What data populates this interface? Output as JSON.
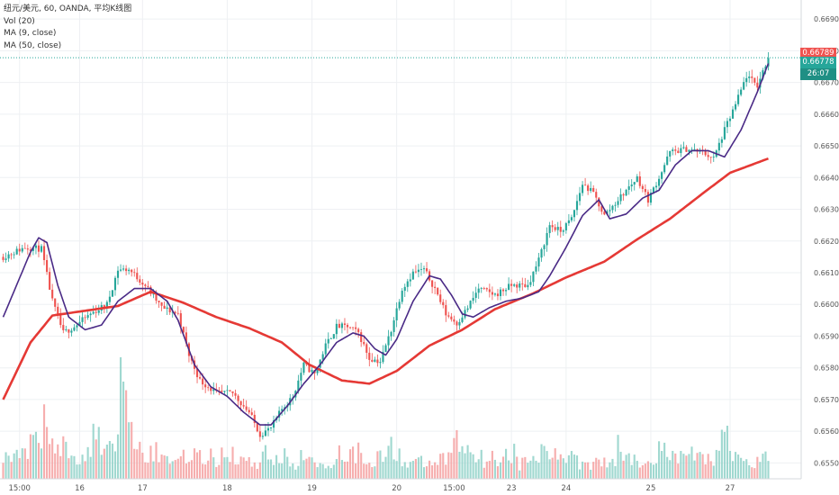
{
  "legend": {
    "title": "纽元/美元, 60, OANDA, 平均K线图",
    "vol": "Vol (20)",
    "ma9": "MA (9, close)",
    "ma50": "MA (50, close)"
  },
  "badges": {
    "price_high": "0.66789",
    "price_last": "0.66778",
    "countdown": "26:07"
  },
  "colors": {
    "up": "#26a69a",
    "down": "#ef5350",
    "vol_up": "#8fd1c8",
    "vol_down": "#f4a0a0",
    "ma9": "#4a2a86",
    "ma50": "#e53935",
    "grid": "#eef0f3",
    "axis_text": "#555555",
    "badge_high": "#ef5350",
    "badge_last": "#26a69a",
    "badge_countdown": "#1f8f84",
    "last_line": "#26a69a"
  },
  "chart_data": {
    "type": "candlestick",
    "ylim": [
      0.6545,
      0.6696
    ],
    "y_ticks": [
      "0.66900",
      "0.66800",
      "0.66700",
      "0.66600",
      "0.66500",
      "0.66400",
      "0.66300",
      "0.66200",
      "0.66100",
      "0.66000",
      "0.65900",
      "0.65800",
      "0.65700",
      "0.65600",
      "0.65500"
    ],
    "x_ticks": [
      "15:00",
      "16",
      "17",
      "18",
      "19",
      "20",
      "15:00",
      "23",
      "24",
      "25",
      "27"
    ],
    "grid": true,
    "series": [
      {
        "name": "MA (9, close)",
        "anchors": [
          [
            0,
            0.6596
          ],
          [
            10,
            0.66165
          ],
          [
            13,
            0.6621
          ],
          [
            16,
            0.66195
          ],
          [
            20,
            0.6606
          ],
          [
            24,
            0.6596
          ],
          [
            30,
            0.6592
          ],
          [
            36,
            0.65935
          ],
          [
            42,
            0.6601
          ],
          [
            48,
            0.6605
          ],
          [
            54,
            0.6605
          ],
          [
            60,
            0.6601
          ],
          [
            64,
            0.6595
          ],
          [
            70,
            0.6581
          ],
          [
            76,
            0.6574
          ],
          [
            82,
            0.6571
          ],
          [
            88,
            0.6566
          ],
          [
            94,
            0.6562
          ],
          [
            98,
            0.6562
          ],
          [
            104,
            0.6568
          ],
          [
            110,
            0.6575
          ],
          [
            116,
            0.6581
          ],
          [
            122,
            0.6588
          ],
          [
            128,
            0.6591
          ],
          [
            132,
            0.659
          ],
          [
            136,
            0.6586
          ],
          [
            140,
            0.6584
          ],
          [
            144,
            0.6589
          ],
          [
            150,
            0.6601
          ],
          [
            156,
            0.6609
          ],
          [
            160,
            0.6608
          ],
          [
            164,
            0.6603
          ],
          [
            168,
            0.6597
          ],
          [
            172,
            0.6596
          ],
          [
            178,
            0.6599
          ],
          [
            184,
            0.6601
          ],
          [
            190,
            0.6602
          ],
          [
            196,
            0.6604
          ],
          [
            200,
            0.6609
          ],
          [
            206,
            0.6618
          ],
          [
            212,
            0.6628
          ],
          [
            218,
            0.6633
          ],
          [
            222,
            0.6627
          ],
          [
            228,
            0.66285
          ],
          [
            234,
            0.66335
          ],
          [
            240,
            0.6636
          ],
          [
            246,
            0.6644
          ],
          [
            252,
            0.66485
          ],
          [
            258,
            0.66485
          ],
          [
            264,
            0.66465
          ],
          [
            270,
            0.6655
          ],
          [
            276,
            0.6667
          ],
          [
            280,
            0.6676
          ]
        ]
      },
      {
        "name": "MA (50, close)",
        "anchors": [
          [
            0,
            0.657
          ],
          [
            10,
            0.6588
          ],
          [
            18,
            0.65965
          ],
          [
            30,
            0.6598
          ],
          [
            42,
            0.65995
          ],
          [
            54,
            0.6604
          ],
          [
            66,
            0.66005
          ],
          [
            78,
            0.6596
          ],
          [
            90,
            0.65925
          ],
          [
            102,
            0.6588
          ],
          [
            112,
            0.6581
          ],
          [
            124,
            0.6576
          ],
          [
            134,
            0.6575
          ],
          [
            144,
            0.6579
          ],
          [
            156,
            0.6587
          ],
          [
            168,
            0.6592
          ],
          [
            180,
            0.65985
          ],
          [
            194,
            0.66035
          ],
          [
            206,
            0.66085
          ],
          [
            220,
            0.66135
          ],
          [
            232,
            0.66205
          ],
          [
            244,
            0.6627
          ],
          [
            256,
            0.6635
          ],
          [
            266,
            0.66415
          ],
          [
            280,
            0.6646
          ]
        ]
      }
    ],
    "price_path": [
      [
        0,
        0.6615
      ],
      [
        8,
        0.6618
      ],
      [
        14,
        0.66175
      ],
      [
        18,
        0.6601
      ],
      [
        22,
        0.6591
      ],
      [
        26,
        0.6593
      ],
      [
        32,
        0.6597
      ],
      [
        38,
        0.66
      ],
      [
        42,
        0.6611
      ],
      [
        46,
        0.6611
      ],
      [
        52,
        0.6606
      ],
      [
        58,
        0.6599
      ],
      [
        64,
        0.6597
      ],
      [
        68,
        0.6584
      ],
      [
        72,
        0.6576
      ],
      [
        78,
        0.6572
      ],
      [
        84,
        0.6572
      ],
      [
        90,
        0.6566
      ],
      [
        94,
        0.6559
      ],
      [
        98,
        0.6561
      ],
      [
        102,
        0.6567
      ],
      [
        106,
        0.6571
      ],
      [
        110,
        0.6581
      ],
      [
        114,
        0.6578
      ],
      [
        118,
        0.6587
      ],
      [
        122,
        0.6593
      ],
      [
        126,
        0.6593
      ],
      [
        130,
        0.6591
      ],
      [
        134,
        0.6583
      ],
      [
        138,
        0.6582
      ],
      [
        142,
        0.6592
      ],
      [
        146,
        0.6605
      ],
      [
        150,
        0.661
      ],
      [
        154,
        0.6611
      ],
      [
        158,
        0.6605
      ],
      [
        162,
        0.6597
      ],
      [
        166,
        0.6594
      ],
      [
        170,
        0.6599
      ],
      [
        174,
        0.6605
      ],
      [
        180,
        0.6603
      ],
      [
        186,
        0.6606
      ],
      [
        192,
        0.6606
      ],
      [
        196,
        0.6614
      ],
      [
        200,
        0.6625
      ],
      [
        204,
        0.6623
      ],
      [
        208,
        0.6627
      ],
      [
        212,
        0.6638
      ],
      [
        216,
        0.6635
      ],
      [
        220,
        0.6628
      ],
      [
        224,
        0.6632
      ],
      [
        228,
        0.6636
      ],
      [
        232,
        0.664
      ],
      [
        236,
        0.6633
      ],
      [
        240,
        0.664
      ],
      [
        244,
        0.6648
      ],
      [
        250,
        0.6649
      ],
      [
        256,
        0.6648
      ],
      [
        260,
        0.6646
      ],
      [
        264,
        0.6655
      ],
      [
        268,
        0.6663
      ],
      [
        272,
        0.6672
      ],
      [
        276,
        0.6669
      ],
      [
        280,
        0.6678
      ]
    ],
    "volume": {
      "max_label": "",
      "levels": [
        0.2,
        0.2,
        0.35,
        0.5,
        0.3,
        0.2,
        0.25,
        0.4,
        0.3,
        1.0,
        0.45,
        0.25,
        0.2,
        0.2,
        0.25,
        0.2,
        0.2,
        0.25,
        0.2,
        0.15,
        0.25,
        0.2,
        0.15,
        0.2,
        0.15,
        0.15,
        0.25,
        0.25,
        0.2,
        0.2,
        0.3,
        0.15,
        0.15,
        0.15,
        0.2,
        0.35,
        0.3,
        0.2,
        0.2,
        0.25,
        0.15,
        0.2,
        0.25,
        0.2,
        0.25,
        0.15,
        0.2,
        0.15,
        0.3,
        0.2,
        0.2,
        0.25,
        0.2,
        0.25,
        0.2,
        0.2,
        0.35,
        0.2,
        0.15,
        0.2
      ]
    }
  }
}
